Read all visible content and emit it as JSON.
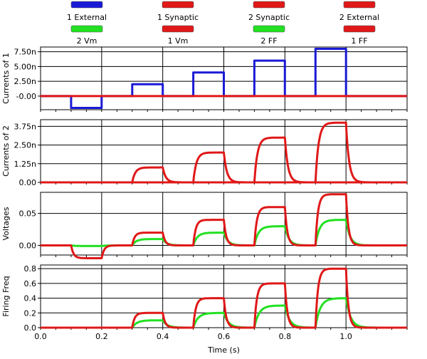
{
  "legend": [
    {
      "label": "1 External",
      "color": "#1a1ad6"
    },
    {
      "label": "1 Synaptic",
      "color": "#e01818"
    },
    {
      "label": "2 Synaptic",
      "color": "#e01818"
    },
    {
      "label": "2 External",
      "color": "#e01818"
    },
    {
      "label": "2 Vm",
      "color": "#22e022"
    },
    {
      "label": "1 Vm",
      "color": "#e01818"
    },
    {
      "label": "2 FF",
      "color": "#22e022"
    },
    {
      "label": "1 FF",
      "color": "#e01818"
    }
  ],
  "chart_data": [
    {
      "type": "line",
      "ylabel": "Currents of 1",
      "xlim": [
        0,
        1.2
      ],
      "ylim": [
        -2.3e-09,
        8.3e-09
      ],
      "yticks": [
        0,
        2.5e-09,
        5e-09,
        7.5e-09
      ],
      "yticklabels": [
        "-0.00",
        "2.50n",
        "5.00n",
        "7.50n"
      ],
      "grid": true,
      "series": [
        {
          "legend_index": 0,
          "color": "#1a1ad6",
          "shape": "square",
          "pulses": [
            [
              0.1,
              0.2,
              -2e-09
            ],
            [
              0.3,
              0.4,
              2e-09
            ],
            [
              0.5,
              0.6,
              4e-09
            ],
            [
              0.7,
              0.8,
              6e-09
            ],
            [
              0.9,
              1.0,
              8e-09
            ]
          ]
        },
        {
          "legend_index": 1,
          "color": "#e01818",
          "shape": "flat",
          "value": 0
        }
      ]
    },
    {
      "type": "line",
      "ylabel": "Currents of 2",
      "xlim": [
        0,
        1.2
      ],
      "ylim": [
        0,
        4.2e-09
      ],
      "yticks": [
        0,
        1.25e-09,
        2.5e-09,
        3.75e-09
      ],
      "yticklabels": [
        "0.00",
        "1.25n",
        "2.50n",
        "3.75n"
      ],
      "grid": true,
      "series": [
        {
          "legend_index": 3,
          "color": "#e01818",
          "shape": "flat",
          "value": 0
        },
        {
          "legend_index": 2,
          "color": "#e01818",
          "shape": "rc",
          "tau": 0.01,
          "pulses": [
            [
              0.3,
              0.4,
              1e-09
            ],
            [
              0.5,
              0.6,
              2e-09
            ],
            [
              0.7,
              0.8,
              3e-09
            ],
            [
              0.9,
              1.0,
              4e-09
            ]
          ]
        }
      ]
    },
    {
      "type": "line",
      "ylabel": "Voltages",
      "xlim": [
        0,
        1.2
      ],
      "ylim": [
        -0.015,
        0.083
      ],
      "yticks": [
        0,
        0.05
      ],
      "yticklabels": [
        "0.00",
        "0.05"
      ],
      "grid": true,
      "series": [
        {
          "legend_index": 4,
          "color": "#22e022",
          "shape": "rc",
          "tau": 0.013,
          "pulses": [
            [
              0.1,
              0.2,
              -0.001
            ],
            [
              0.3,
              0.4,
              0.01
            ],
            [
              0.5,
              0.6,
              0.02
            ],
            [
              0.7,
              0.8,
              0.03
            ],
            [
              0.9,
              1.0,
              0.04
            ]
          ]
        },
        {
          "legend_index": 5,
          "color": "#e01818",
          "shape": "rc",
          "tau": 0.008,
          "pulses": [
            [
              0.1,
              0.2,
              -0.02
            ],
            [
              0.3,
              0.4,
              0.02
            ],
            [
              0.5,
              0.6,
              0.04
            ],
            [
              0.7,
              0.8,
              0.06
            ],
            [
              0.9,
              1.0,
              0.08
            ]
          ]
        }
      ]
    },
    {
      "type": "line",
      "ylabel": "Firing Freq",
      "xlabel": "Time (s)",
      "xlim": [
        0,
        1.2
      ],
      "ylim": [
        0,
        0.85
      ],
      "yticks": [
        0,
        0.2,
        0.4,
        0.6,
        0.8
      ],
      "yticklabels": [
        "0.0",
        "0.2",
        "0.4",
        "0.6",
        "0.8"
      ],
      "xticks": [
        0,
        0.2,
        0.4,
        0.6,
        0.8,
        1.0
      ],
      "xticklabels": [
        "0.0",
        "0.2",
        "0.4",
        "0.6",
        "0.8",
        "1.0"
      ],
      "grid": true,
      "series": [
        {
          "legend_index": 6,
          "color": "#22e022",
          "shape": "rc",
          "tau": 0.015,
          "pulses": [
            [
              0.3,
              0.4,
              0.1
            ],
            [
              0.5,
              0.6,
              0.2
            ],
            [
              0.7,
              0.8,
              0.3
            ],
            [
              0.9,
              1.0,
              0.4
            ]
          ]
        },
        {
          "legend_index": 7,
          "color": "#e01818",
          "shape": "rc",
          "tau": 0.008,
          "pulses": [
            [
              0.3,
              0.4,
              0.2
            ],
            [
              0.5,
              0.6,
              0.4
            ],
            [
              0.7,
              0.8,
              0.6
            ],
            [
              0.9,
              1.0,
              0.8
            ]
          ]
        }
      ]
    }
  ]
}
